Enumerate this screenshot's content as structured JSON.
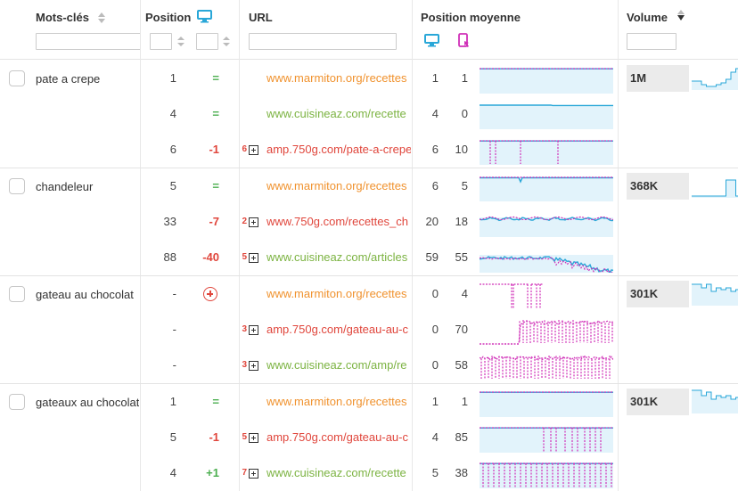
{
  "header": {
    "keywords": "Mots-clés",
    "position": "Position",
    "url": "URL",
    "avg_position": "Position moyenne",
    "volume": "Volume"
  },
  "colors": {
    "desktop": "#29a7d8",
    "mobile": "#d030b8",
    "orange_url": "#f0922e",
    "green_url": "#7cb342",
    "red_url": "#e0463c",
    "spark_fill": "#e2f3fb"
  },
  "groups": [
    {
      "keyword": "pate a crepe",
      "volume": "1M",
      "rows": [
        {
          "pos": "1",
          "change": "=",
          "change_type": "eq",
          "count": "",
          "url": "www.marmiton.org/recettes",
          "url_color": "orange",
          "avg_desktop": "1",
          "avg_mobile": "1",
          "spark": "flat_mobile_top"
        },
        {
          "pos": "4",
          "change": "=",
          "change_type": "eq",
          "count": "",
          "url": "www.cuisineaz.com/recette",
          "url_color": "green",
          "avg_desktop": "4",
          "avg_mobile": "0",
          "spark": "flat_desktop"
        },
        {
          "pos": "6",
          "change": "-1",
          "change_type": "neg",
          "count": "6",
          "url": "amp.750g.com/pate-a-crepe",
          "url_color": "red",
          "avg_desktop": "6",
          "avg_mobile": "10",
          "spark": "drops_few"
        }
      ]
    },
    {
      "keyword": "chandeleur",
      "volume": "368K",
      "rows": [
        {
          "pos": "5",
          "change": "=",
          "change_type": "eq",
          "count": "",
          "url": "www.marmiton.org/recettes",
          "url_color": "orange",
          "avg_desktop": "6",
          "avg_mobile": "5",
          "spark": "flat_dip"
        },
        {
          "pos": "33",
          "change": "-7",
          "change_type": "neg",
          "count": "2",
          "url": "www.750g.com/recettes_ch",
          "url_color": "red",
          "avg_desktop": "20",
          "avg_mobile": "18",
          "spark": "mid_wavy"
        },
        {
          "pos": "88",
          "change": "-40",
          "change_type": "neg",
          "count": "5",
          "url": "www.cuisineaz.com/articles",
          "url_color": "green",
          "avg_desktop": "59",
          "avg_mobile": "55",
          "spark": "falling"
        }
      ]
    },
    {
      "keyword": "gateau au chocolat",
      "volume": "301K",
      "rows": [
        {
          "pos": "-",
          "change": "",
          "change_type": "new",
          "count": "",
          "url": "www.marmiton.org/recettes",
          "url_color": "orange",
          "avg_desktop": "0",
          "avg_mobile": "4",
          "spark": "mobile_partial"
        },
        {
          "pos": "-",
          "change": "",
          "change_type": "none",
          "count": "3",
          "url": "amp.750g.com/gateau-au-c",
          "url_color": "red",
          "avg_desktop": "0",
          "avg_mobile": "70",
          "spark": "mobile_noisy_right"
        },
        {
          "pos": "-",
          "change": "",
          "change_type": "none",
          "count": "3",
          "url": "www.cuisineaz.com/amp/re",
          "url_color": "green",
          "avg_desktop": "0",
          "avg_mobile": "58",
          "spark": "mobile_noisy_full"
        }
      ]
    },
    {
      "keyword": "gateaux au chocolat",
      "volume": "301K",
      "rows": [
        {
          "pos": "1",
          "change": "=",
          "change_type": "eq",
          "count": "",
          "url": "www.marmiton.org/recettes",
          "url_color": "orange",
          "avg_desktop": "1",
          "avg_mobile": "1",
          "spark": "flat_mobile_top"
        },
        {
          "pos": "5",
          "change": "-1",
          "change_type": "neg",
          "count": "5",
          "url": "amp.750g.com/gateau-au-c",
          "url_color": "red",
          "avg_desktop": "4",
          "avg_mobile": "85",
          "spark": "drops_right"
        },
        {
          "pos": "4",
          "change": "+1",
          "change_type": "pos",
          "count": "7",
          "url": "www.cuisineaz.com/recette",
          "url_color": "green",
          "avg_desktop": "5",
          "avg_mobile": "38",
          "spark": "drops_many"
        }
      ]
    }
  ]
}
